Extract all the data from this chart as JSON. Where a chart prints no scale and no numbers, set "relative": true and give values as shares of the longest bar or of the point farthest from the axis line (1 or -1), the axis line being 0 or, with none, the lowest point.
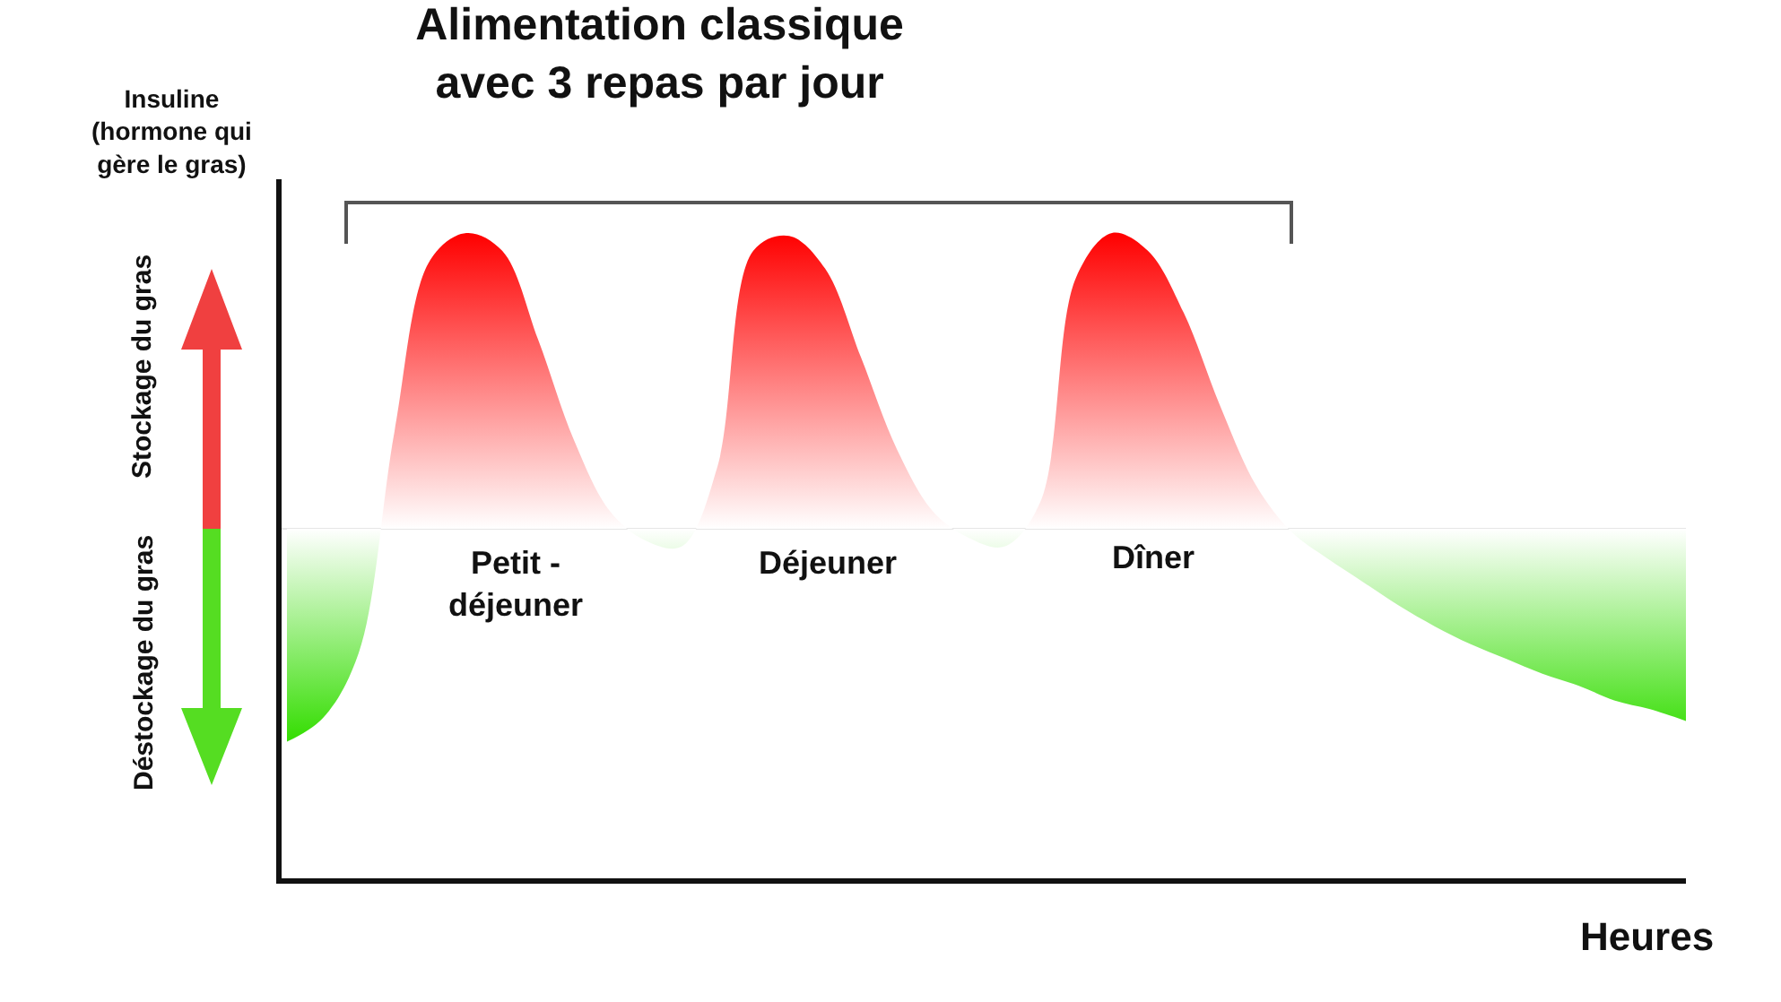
{
  "chart_data": {
    "type": "area",
    "relative": true,
    "title": "Alimentation classique\navec 3 repas par jour",
    "xlabel": "Heures",
    "ylabel": "Insuline\n(hormone qui\ngère le gras)",
    "categories": [
      null,
      null,
      null,
      null,
      null,
      null,
      null,
      null,
      null,
      null,
      null,
      null,
      null,
      null,
      null,
      null,
      null,
      null,
      null,
      null,
      null,
      null,
      null,
      null,
      null,
      null,
      null,
      null,
      null,
      null,
      null,
      null,
      null,
      null,
      null,
      null,
      null,
      null,
      null,
      null
    ],
    "series": [
      {
        "color": "#ff0000",
        "values": [
          -0.72,
          -0.64,
          -0.42,
          0.33,
          0.91,
          1,
          0.94,
          0.64,
          0.3,
          0.06,
          -0.04,
          -0.06,
          0.21,
          0.94,
          0.99,
          0.88,
          0.58,
          0.27,
          0.06,
          -0.03,
          -0.06,
          0.09,
          0.85,
          1,
          0.94,
          0.73,
          0.42,
          0.15,
          -0.01,
          -0.1,
          -0.18,
          -0.26,
          -0.33,
          -0.39,
          -0.44,
          -0.49,
          -0.53,
          -0.58,
          -0.61,
          -0.65
        ]
      }
    ],
    "annotations": [
      "Stockage du gras",
      "Déstockage du gras",
      "Petit -\ndéjeuner",
      "Déjeuner",
      "Dîner"
    ],
    "line_style": "solid"
  }
}
